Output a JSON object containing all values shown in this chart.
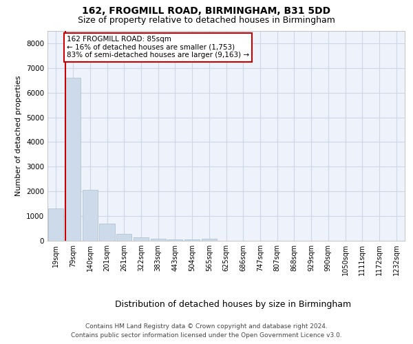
{
  "title_line1": "162, FROGMILL ROAD, BIRMINGHAM, B31 5DD",
  "title_line2": "Size of property relative to detached houses in Birmingham",
  "xlabel": "Distribution of detached houses by size in Birmingham",
  "ylabel": "Number of detached properties",
  "categories": [
    "19sqm",
    "79sqm",
    "140sqm",
    "201sqm",
    "261sqm",
    "322sqm",
    "383sqm",
    "443sqm",
    "504sqm",
    "565sqm",
    "625sqm",
    "686sqm",
    "747sqm",
    "807sqm",
    "868sqm",
    "929sqm",
    "990sqm",
    "1050sqm",
    "1111sqm",
    "1172sqm",
    "1232sqm"
  ],
  "values": [
    1300,
    6600,
    2075,
    700,
    280,
    150,
    95,
    60,
    55,
    70,
    0,
    0,
    0,
    0,
    0,
    0,
    0,
    0,
    0,
    0,
    0
  ],
  "bar_color": "#ccdaea",
  "bar_edgecolor": "#aabccc",
  "vline_color": "#cc0000",
  "vline_x_index": 1,
  "annotation_text": "162 FROGMILL ROAD: 85sqm\n← 16% of detached houses are smaller (1,753)\n83% of semi-detached houses are larger (9,163) →",
  "annotation_box_edgecolor": "#cc0000",
  "annotation_box_facecolor": "#ffffff",
  "ylim": [
    0,
    8500
  ],
  "yticks": [
    0,
    1000,
    2000,
    3000,
    4000,
    5000,
    6000,
    7000,
    8000
  ],
  "grid_color": "#ccd6e8",
  "background_color": "#eef2fa",
  "footer_line1": "Contains HM Land Registry data © Crown copyright and database right 2024.",
  "footer_line2": "Contains public sector information licensed under the Open Government Licence v3.0.",
  "title_fontsize": 10,
  "subtitle_fontsize": 9,
  "xlabel_fontsize": 9,
  "ylabel_fontsize": 8,
  "tick_fontsize": 7,
  "annotation_fontsize": 7.5,
  "footer_fontsize": 6.5
}
